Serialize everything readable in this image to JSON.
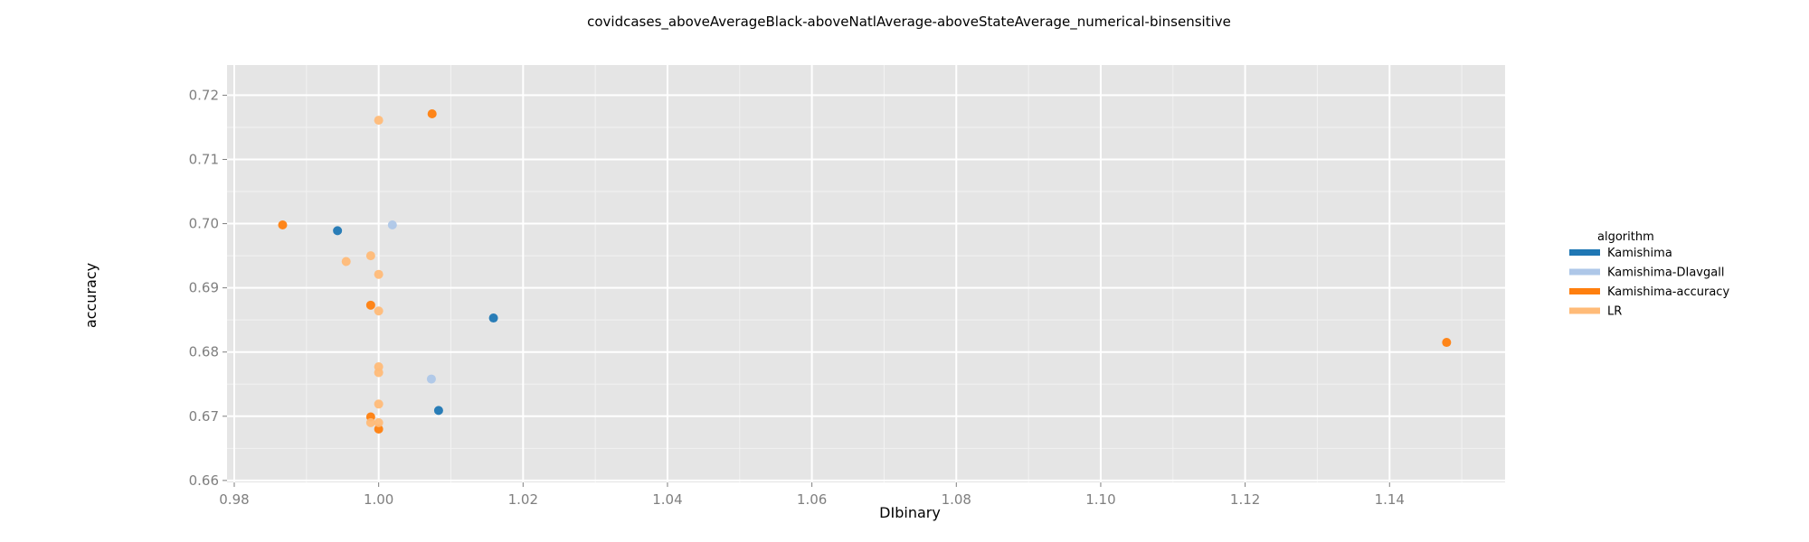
{
  "chart_data": {
    "type": "scatter",
    "title": "covidcases_aboveAverageBlack-aboveNatlAverage-aboveStateAverage_numerical-binsensitive",
    "xlabel": "DIbinary",
    "ylabel": "accuracy",
    "xlim": [
      0.979,
      1.156
    ],
    "ylim": [
      0.6597,
      0.7247
    ],
    "x_ticks": [
      "0.98",
      "1.00",
      "1.02",
      "1.04",
      "1.06",
      "1.08",
      "1.10",
      "1.12",
      "1.14"
    ],
    "y_ticks": [
      "0.66",
      "0.67",
      "0.68",
      "0.69",
      "0.70",
      "0.71",
      "0.72"
    ],
    "grid": true,
    "legend_title": "algorithm",
    "legend_position": "right",
    "series": [
      {
        "name": "Kamishima",
        "color": "#1f77b4",
        "points": [
          {
            "x": 0.9943,
            "y": 0.6989
          },
          {
            "x": 1.0159,
            "y": 0.6853
          },
          {
            "x": 1.0083,
            "y": 0.6709
          }
        ]
      },
      {
        "name": "Kamishima-DIavgall",
        "color": "#aec7e8",
        "points": [
          {
            "x": 1.0019,
            "y": 0.6998
          },
          {
            "x": 1.0073,
            "y": 0.6758
          }
        ]
      },
      {
        "name": "Kamishima-accuracy",
        "color": "#ff7f0e",
        "points": [
          {
            "x": 1.0074,
            "y": 0.7171
          },
          {
            "x": 0.9867,
            "y": 0.6998
          },
          {
            "x": 0.9989,
            "y": 0.6873
          },
          {
            "x": 0.9989,
            "y": 0.6699
          },
          {
            "x": 1.0,
            "y": 0.668
          },
          {
            "x": 1.1479,
            "y": 0.6815
          }
        ]
      },
      {
        "name": "LR",
        "color": "#ffbb78",
        "points": [
          {
            "x": 1.0,
            "y": 0.7161
          },
          {
            "x": 0.9989,
            "y": 0.695
          },
          {
            "x": 0.9955,
            "y": 0.6941
          },
          {
            "x": 1.0,
            "y": 0.6921
          },
          {
            "x": 1.0,
            "y": 0.6864
          },
          {
            "x": 1.0,
            "y": 0.6777
          },
          {
            "x": 1.0,
            "y": 0.6768
          },
          {
            "x": 1.0,
            "y": 0.6719
          },
          {
            "x": 0.9989,
            "y": 0.669
          },
          {
            "x": 1.0,
            "y": 0.669
          }
        ]
      }
    ]
  }
}
